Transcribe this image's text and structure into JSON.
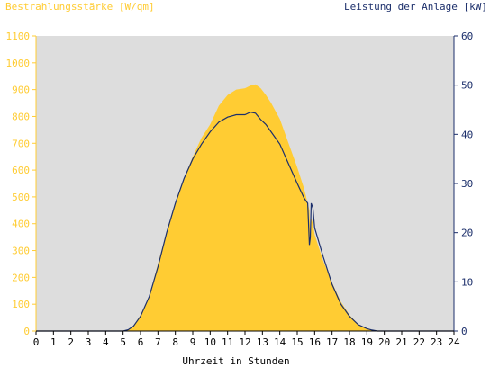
{
  "chart_data": {
    "type": "area",
    "left_axis_title": "Bestrahlungsstärke [W/qm]",
    "right_axis_title": "Leistung der Anlage [kW]",
    "xlabel": "Uhrzeit in Stunden",
    "xlim": [
      0,
      24
    ],
    "ylim_left": [
      0,
      1100
    ],
    "ylim_right": [
      0,
      60
    ],
    "x_ticks": [
      "0",
      "1",
      "2",
      "3",
      "4",
      "5",
      "6",
      "7",
      "8",
      "9",
      "10",
      "11",
      "12",
      "13",
      "14",
      "15",
      "16",
      "17",
      "18",
      "19",
      "20",
      "21",
      "22",
      "23",
      "24"
    ],
    "y_ticks_left": [
      "0",
      "100",
      "200",
      "300",
      "400",
      "500",
      "600",
      "700",
      "800",
      "900",
      "1000",
      "1100"
    ],
    "y_ticks_right": [
      "0",
      "10",
      "20",
      "30",
      "40",
      "50",
      "60"
    ],
    "grid": false,
    "colors": {
      "irradiance": "#ffcc33",
      "power": "#1c2f6b",
      "plot_background": "#dddddd",
      "left_axis": "#ffcc33",
      "right_axis": "#1c2f6b",
      "x_axis": "#000000"
    },
    "series": [
      {
        "axis": "left",
        "style": "area",
        "x": [
          0,
          5.0,
          5.3,
          5.6,
          6.0,
          6.5,
          7.0,
          7.5,
          8.0,
          8.5,
          9.0,
          9.5,
          10.0,
          10.5,
          11.0,
          11.5,
          12.0,
          12.3,
          12.6,
          12.9,
          13.2,
          13.5,
          14.0,
          14.5,
          15.0,
          15.4,
          15.7,
          15.75,
          15.8,
          15.9,
          16.0,
          16.5,
          17.0,
          17.5,
          18.0,
          18.5,
          19.0,
          19.3,
          19.6,
          20.0,
          24
        ],
        "y": [
          0,
          0,
          5,
          20,
          60,
          130,
          250,
          370,
          480,
          570,
          650,
          720,
          770,
          840,
          880,
          900,
          905,
          915,
          920,
          905,
          880,
          850,
          790,
          700,
          610,
          530,
          450,
          340,
          420,
          400,
          360,
          260,
          180,
          110,
          60,
          25,
          8,
          3,
          1,
          0,
          0
        ]
      },
      {
        "axis": "right",
        "style": "line",
        "x": [
          0,
          5.0,
          5.3,
          5.6,
          6.0,
          6.5,
          7.0,
          7.5,
          8.0,
          8.5,
          9.0,
          9.5,
          10.0,
          10.5,
          11.0,
          11.5,
          12.0,
          12.3,
          12.6,
          12.9,
          13.2,
          13.5,
          14.0,
          14.5,
          15.0,
          15.4,
          15.6,
          15.7,
          15.75,
          15.8,
          15.9,
          16.0,
          16.5,
          17.0,
          17.5,
          18.0,
          18.5,
          19.0,
          19.3,
          19.6,
          20.0,
          24
        ],
        "y": [
          0,
          0,
          0.3,
          1,
          3,
          7,
          13,
          20,
          26,
          31,
          35,
          38,
          40.5,
          42.5,
          43.5,
          44,
          44,
          44.5,
          44.3,
          43,
          42,
          40.5,
          38,
          34,
          30,
          27,
          26,
          17.5,
          19,
          26,
          25,
          21,
          15,
          9.5,
          5.5,
          3,
          1.3,
          0.5,
          0.2,
          0,
          0,
          0
        ]
      }
    ]
  }
}
